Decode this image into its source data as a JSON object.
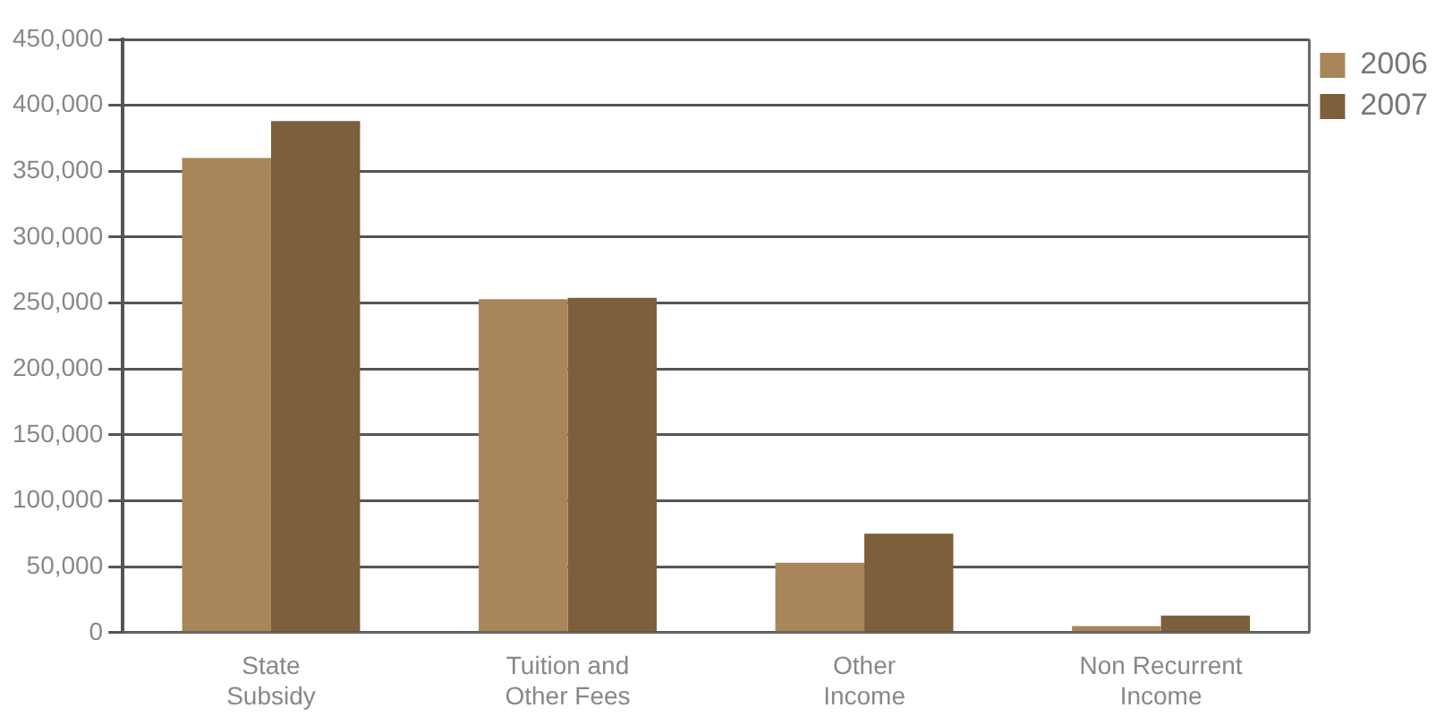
{
  "chart_data": {
    "type": "bar",
    "categories": [
      "State Subsidy",
      "Tuition and Other Fees",
      "Other Income",
      "Non Recurrent Income"
    ],
    "series": [
      {
        "name": "2006",
        "color": "#a8865a",
        "values": [
          360000,
          253000,
          53000,
          5000
        ]
      },
      {
        "name": "2007",
        "color": "#7d5f3b",
        "values": [
          388000,
          254000,
          75000,
          13000
        ]
      }
    ],
    "ylim": [
      0,
      450000
    ],
    "yticks": [
      0,
      {
        "value": 50000,
        "label": "50,000"
      },
      {
        "value": 100000,
        "label": "100,000"
      },
      {
        "value": 150000,
        "label": "150,000"
      },
      {
        "value": 200000,
        "label": "200,000"
      },
      {
        "value": 250000,
        "label": "250,000"
      },
      {
        "value": 300000,
        "label": "300,000"
      },
      {
        "value": 350000,
        "label": "350,000"
      },
      {
        "value": 400000,
        "label": "400,000"
      },
      {
        "value": 450000,
        "label": "450,000"
      }
    ],
    "grid": "y",
    "legend": "top right"
  }
}
